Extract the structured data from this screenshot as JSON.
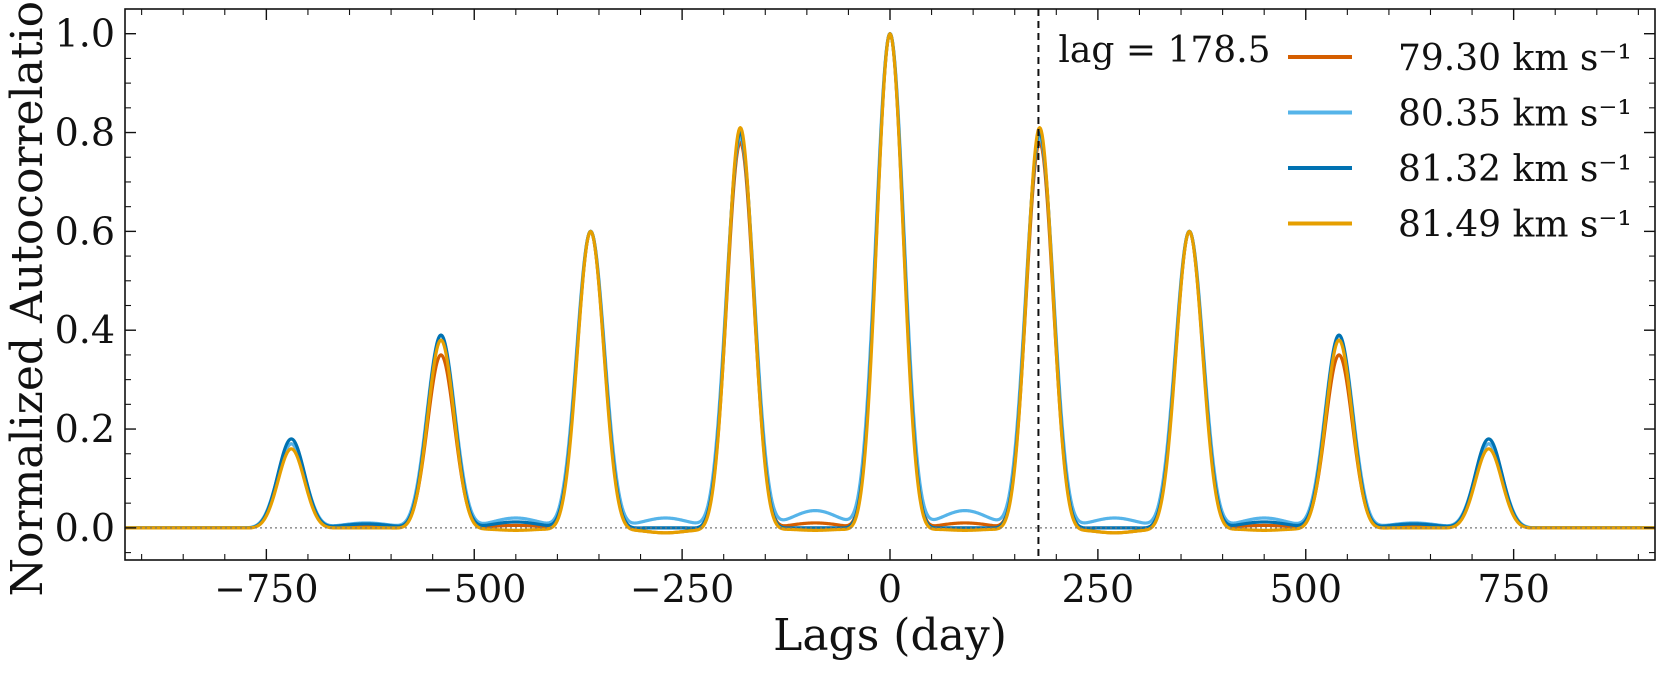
{
  "chart_data": {
    "type": "line",
    "title": "",
    "xlabel": "Lags (day)",
    "ylabel": "Normalized Autocorrelation",
    "xlim": [
      -920,
      920
    ],
    "ylim": [
      -0.065,
      1.05
    ],
    "xticks": [
      -750,
      -500,
      -250,
      0,
      250,
      500,
      750
    ],
    "xtick_labels": [
      "−750",
      "−500",
      "−250",
      "0",
      "250",
      "500",
      "750"
    ],
    "yticks": [
      0.0,
      0.2,
      0.4,
      0.6,
      0.8,
      1.0
    ],
    "ytick_labels": [
      "0.0",
      "0.2",
      "0.4",
      "0.6",
      "0.8",
      "1.0"
    ],
    "grid": false,
    "legend_position": "top-right",
    "reference_line": {
      "y": 0,
      "style": "dotted"
    },
    "vline": {
      "x": 178.5,
      "style": "dashed",
      "label": "lag = 178.5"
    },
    "peak_lags": [
      -720,
      -540,
      -360,
      -180,
      0,
      180,
      360,
      540,
      720
    ],
    "series": [
      {
        "name": "79.30 km s⁻¹",
        "color": "#d55e00",
        "peak_values": [
          0.17,
          0.35,
          0.6,
          0.78,
          1.0,
          0.78,
          0.6,
          0.35,
          0.17
        ],
        "sidelobe_values": [
          0.005,
          0.005,
          -0.01,
          0.01,
          0.01,
          -0.01,
          0.005,
          0.005
        ]
      },
      {
        "name": "80.35 km s⁻¹",
        "color": "#56b4e9",
        "peak_values": [
          0.17,
          0.39,
          0.6,
          0.79,
          1.0,
          0.79,
          0.6,
          0.39,
          0.17
        ],
        "sidelobe_values": [
          0.01,
          0.02,
          0.02,
          0.035,
          0.035,
          0.02,
          0.02,
          0.01
        ]
      },
      {
        "name": "81.32 km s⁻¹",
        "color": "#0072b2",
        "peak_values": [
          0.18,
          0.39,
          0.6,
          0.8,
          1.0,
          0.8,
          0.6,
          0.39,
          0.18
        ],
        "sidelobe_values": [
          0.008,
          0.012,
          0.0,
          0.0,
          0.0,
          0.0,
          0.012,
          0.008
        ]
      },
      {
        "name": "81.49 km s⁻¹",
        "color": "#e69f00",
        "peak_values": [
          0.16,
          0.38,
          0.6,
          0.81,
          1.0,
          0.81,
          0.6,
          0.38,
          0.16
        ],
        "sidelobe_values": [
          0.0,
          -0.005,
          -0.01,
          -0.005,
          -0.005,
          -0.01,
          -0.005,
          0.0
        ]
      }
    ]
  }
}
